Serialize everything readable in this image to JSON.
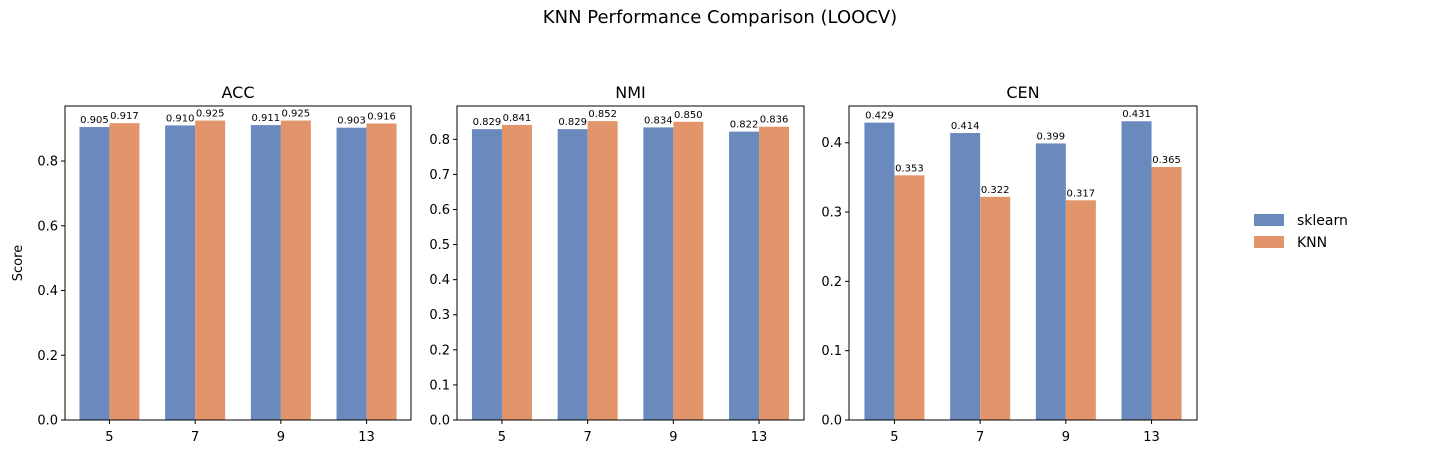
{
  "figure": {
    "suptitle": "KNN Performance Comparison (LOOCV)"
  },
  "legend": {
    "placement": "right",
    "items": [
      {
        "label": "sklearn",
        "color": "#6a89bd"
      },
      {
        "label": "KNN",
        "color": "#e2956a"
      }
    ]
  },
  "chart_data": [
    {
      "type": "bar",
      "title": "ACC",
      "xlabel": "",
      "ylabel": "Score",
      "categories": [
        "5",
        "7",
        "9",
        "13"
      ],
      "ylim": [
        0,
        0.97
      ],
      "yticks": [
        0.0,
        0.2,
        0.4,
        0.6,
        0.8
      ],
      "ytick_labels": [
        "0.0",
        "0.2",
        "0.4",
        "0.6",
        "0.8"
      ],
      "series": [
        {
          "name": "sklearn",
          "values": [
            0.905,
            0.91,
            0.911,
            0.903
          ],
          "labels": [
            "0.905",
            "0.910",
            "0.911",
            "0.903"
          ]
        },
        {
          "name": "KNN",
          "values": [
            0.917,
            0.925,
            0.925,
            0.916
          ],
          "labels": [
            "0.917",
            "0.925",
            "0.925",
            "0.916"
          ]
        }
      ]
    },
    {
      "type": "bar",
      "title": "NMI",
      "xlabel": "",
      "ylabel": "",
      "categories": [
        "5",
        "7",
        "9",
        "13"
      ],
      "ylim": [
        0,
        0.895
      ],
      "yticks": [
        0.0,
        0.1,
        0.2,
        0.3,
        0.4,
        0.5,
        0.6,
        0.7,
        0.8
      ],
      "ytick_labels": [
        "0.0",
        "0.1",
        "0.2",
        "0.3",
        "0.4",
        "0.5",
        "0.6",
        "0.7",
        "0.8"
      ],
      "series": [
        {
          "name": "sklearn",
          "values": [
            0.829,
            0.829,
            0.834,
            0.822
          ],
          "labels": [
            "0.829",
            "0.829",
            "0.834",
            "0.822"
          ]
        },
        {
          "name": "KNN",
          "values": [
            0.841,
            0.852,
            0.85,
            0.836
          ],
          "labels": [
            "0.841",
            "0.852",
            "0.850",
            "0.836"
          ]
        }
      ]
    },
    {
      "type": "bar",
      "title": "CEN",
      "xlabel": "",
      "ylabel": "",
      "categories": [
        "5",
        "7",
        "9",
        "13"
      ],
      "ylim": [
        0,
        0.453
      ],
      "yticks": [
        0.0,
        0.1,
        0.2,
        0.3,
        0.4
      ],
      "ytick_labels": [
        "0.0",
        "0.1",
        "0.2",
        "0.3",
        "0.4"
      ],
      "series": [
        {
          "name": "sklearn",
          "values": [
            0.429,
            0.414,
            0.399,
            0.431
          ],
          "labels": [
            "0.429",
            "0.414",
            "0.399",
            "0.431"
          ]
        },
        {
          "name": "KNN",
          "values": [
            0.353,
            0.322,
            0.317,
            0.365
          ],
          "labels": [
            "0.353",
            "0.322",
            "0.317",
            "0.365"
          ]
        }
      ]
    }
  ]
}
